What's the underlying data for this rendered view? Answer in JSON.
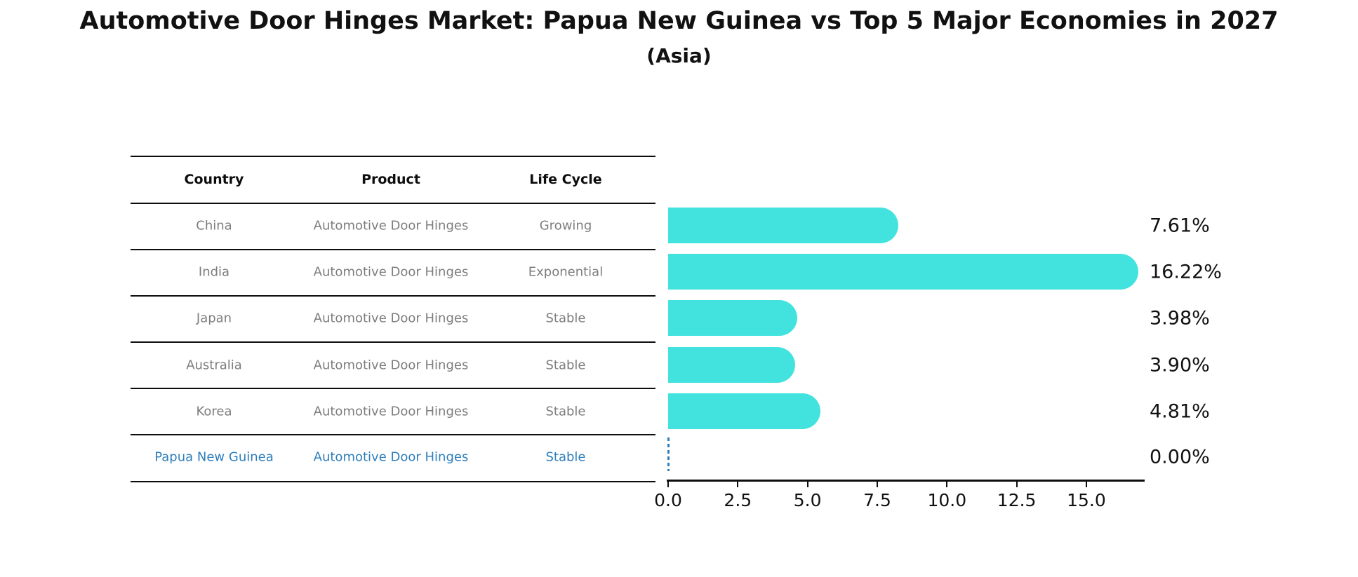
{
  "title": "Automotive Door Hinges Market: Papua New Guinea vs Top 5 Major Economies in 2027",
  "subtitle": "(Asia)",
  "table": {
    "headers": [
      "Country",
      "Product",
      "Life Cycle"
    ],
    "rows": [
      {
        "country": "China",
        "product": "Automotive Door Hinges",
        "life_cycle": "Growing",
        "highlight": false
      },
      {
        "country": "India",
        "product": "Automotive Door Hinges",
        "life_cycle": "Exponential",
        "highlight": false
      },
      {
        "country": "Japan",
        "product": "Automotive Door Hinges",
        "life_cycle": "Stable",
        "highlight": false
      },
      {
        "country": "Australia",
        "product": "Automotive Door Hinges",
        "life_cycle": "Stable",
        "highlight": false
      },
      {
        "country": "Korea",
        "product": "Automotive Door Hinges",
        "life_cycle": "Stable",
        "highlight": false
      },
      {
        "country": "Papua New Guinea",
        "product": "Automotive Door Hinges",
        "life_cycle": "Stable",
        "highlight": true
      }
    ]
  },
  "chart_data": {
    "type": "bar",
    "orientation": "horizontal",
    "title": "Automotive Door Hinges Market: Papua New Guinea vs Top 5 Major Economies in 2027",
    "subtitle": "(Asia)",
    "categories": [
      "China",
      "India",
      "Japan",
      "Australia",
      "Korea",
      "Papua New Guinea"
    ],
    "values": [
      7.61,
      16.22,
      3.98,
      3.9,
      4.81,
      0.0
    ],
    "value_labels": [
      "7.61%",
      "16.22%",
      "3.98%",
      "3.90%",
      "4.81%",
      "0.00%"
    ],
    "x_tick_values": [
      0,
      2.5,
      5,
      7.5,
      10,
      12.5,
      15
    ],
    "x_tick_labels": [
      "0.0",
      "2.5",
      "5.0",
      "7.5",
      "10.0",
      "12.5",
      "15.0"
    ],
    "xlim": [
      0,
      17.1
    ],
    "grid": false,
    "legend": false,
    "bar_color": "#42e3de",
    "highlight_color": "#2e7ebc",
    "text_color": "#111111",
    "muted_text_color": "#7d7d7d"
  }
}
